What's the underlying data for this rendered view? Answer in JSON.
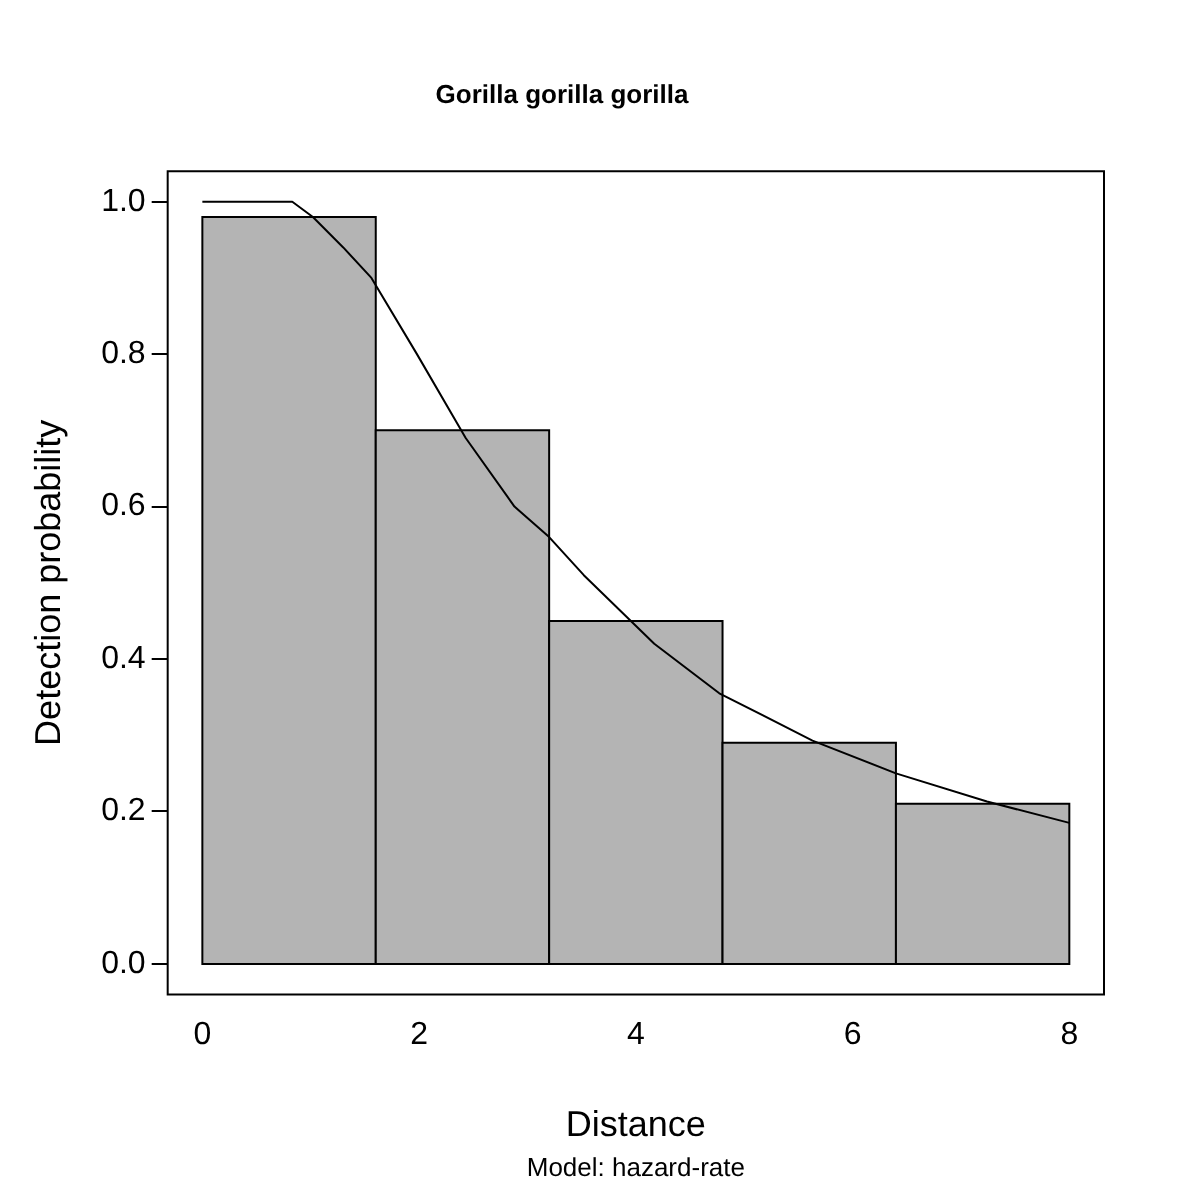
{
  "chart_data": {
    "type": "histogram",
    "title": "Gorilla gorilla gorilla",
    "xlabel": "Distance",
    "ylabel": "Detection probability",
    "annotations": [
      "Model: hazard-rate"
    ],
    "bins": [
      0,
      1.6,
      3.2,
      4.8,
      6.4,
      8
    ],
    "values": [
      0.98,
      0.7,
      0.45,
      0.29,
      0.21
    ],
    "color": "#b4b4b4",
    "series": [
      {
        "type": "line",
        "color": "#000000",
        "x": [
          0,
          0.5,
          0.83,
          1.02,
          1.3,
          1.56,
          1.98,
          2.43,
          2.88,
          3.2,
          3.52,
          4.17,
          4.77,
          5.63,
          6.4,
          7.24,
          8
        ],
        "values": [
          1.0,
          1.0,
          1.0,
          0.98,
          0.94,
          0.9,
          0.8,
          0.69,
          0.6,
          0.56,
          0.51,
          0.42,
          0.355,
          0.293,
          0.25,
          0.213,
          0.185
        ]
      }
    ],
    "xlim": [
      -0.32,
      8.32
    ],
    "ylim": [
      -0.04,
      1.04
    ],
    "xticks": [
      0,
      2,
      4,
      6,
      8
    ],
    "yticks": [
      {
        "value": 0,
        "label": "0.0"
      },
      0.2,
      0.4,
      0.6,
      0.8,
      {
        "value": 1,
        "label": "1.0"
      }
    ],
    "grid": false,
    "legend": false,
    "marker": "none",
    "line_style": "solid"
  }
}
